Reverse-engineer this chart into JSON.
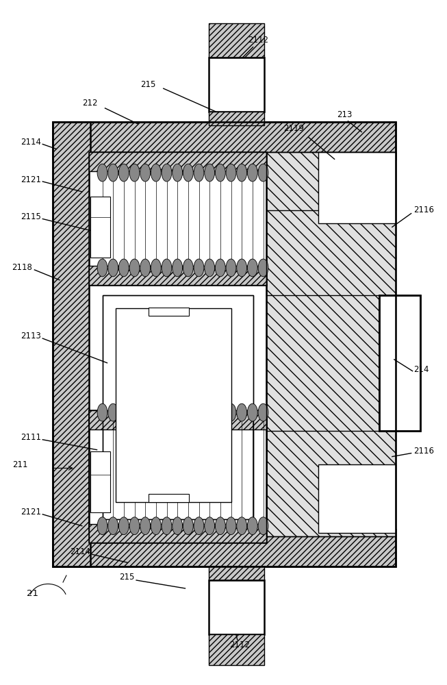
{
  "bg": "#ffffff",
  "lc": "#000000",
  "hg": "#c8c8c8",
  "fs": 8.5,
  "lw": 1.0,
  "lw2": 1.8,
  "n_rollers": 16,
  "roller_color": "#888888",
  "magnet_hatch_color": "#d0d0d0"
}
